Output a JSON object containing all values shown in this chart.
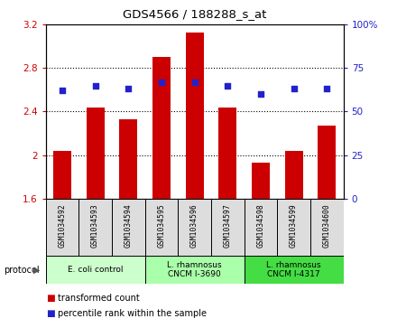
{
  "title": "GDS4566 / 188288_s_at",
  "samples": [
    "GSM1034592",
    "GSM1034593",
    "GSM1034594",
    "GSM1034595",
    "GSM1034596",
    "GSM1034597",
    "GSM1034598",
    "GSM1034599",
    "GSM1034600"
  ],
  "transformed_counts": [
    2.04,
    2.44,
    2.33,
    2.9,
    3.13,
    2.44,
    1.93,
    2.04,
    2.27
  ],
  "percentile_ranks": [
    62,
    65,
    63,
    67,
    67,
    65,
    60,
    63,
    63
  ],
  "ylim_left": [
    1.6,
    3.2
  ],
  "ylim_right": [
    0,
    100
  ],
  "yticks_left": [
    1.6,
    2.0,
    2.4,
    2.8,
    3.2
  ],
  "yticks_right": [
    0,
    25,
    50,
    75,
    100
  ],
  "bar_color": "#cc0000",
  "dot_color": "#2222cc",
  "protocol_labels": [
    "E. coli control",
    "L. rhamnosus\nCNCM I-3690",
    "L. rhamnosus\nCNCM I-4317"
  ],
  "protocol_groups": [
    3,
    3,
    3
  ],
  "protocol_bg_colors": [
    "#ccffcc",
    "#aaffaa",
    "#44dd44"
  ],
  "sample_bg_color": "#dddddd",
  "legend_red": "transformed count",
  "legend_blue": "percentile rank within the sample",
  "dotted_lines": [
    2.0,
    2.4,
    2.8
  ],
  "ytick_left_labels": [
    "1.6",
    "2",
    "2.4",
    "2.8",
    "3.2"
  ],
  "ytick_right_labels": [
    "0",
    "25",
    "50",
    "75",
    "100%"
  ]
}
